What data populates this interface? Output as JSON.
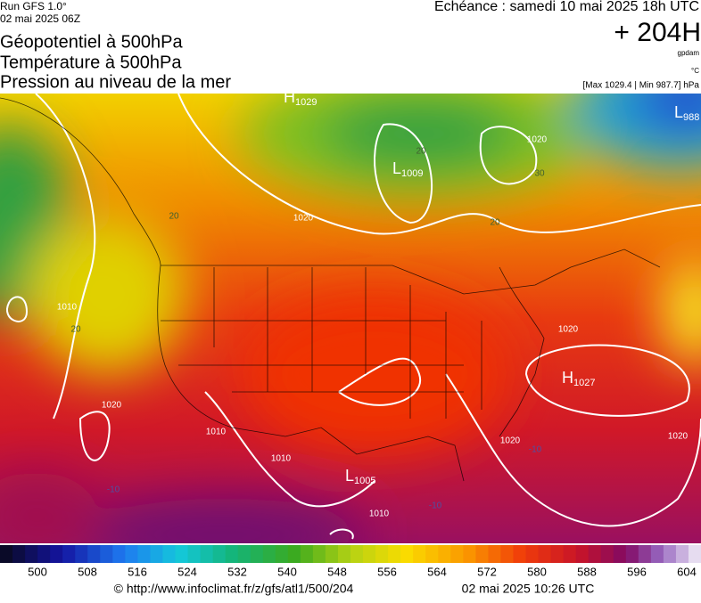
{
  "header": {
    "run": "Run GFS 1.0°",
    "run_date": "02 mai 2025 06Z",
    "titles": [
      "Géopotentiel à 500hPa",
      "Température à 500hPa",
      "Pression au niveau de la mer"
    ],
    "valid": "Echéance : samedi 10 mai 2025 18h UTC",
    "lead": "+ 204H",
    "unit_geo": "gpdam",
    "unit_temp": "°C",
    "range": "[Max 1029.4 | Min 987.7] hPa"
  },
  "map": {
    "centers": [
      {
        "letter": "H",
        "value": "1029"
      },
      {
        "letter": "L",
        "value": "1009"
      },
      {
        "letter": "L",
        "value": "988"
      },
      {
        "letter": "H",
        "value": "1027"
      },
      {
        "letter": "L",
        "value": "1005"
      }
    ],
    "contour_labels": [
      "1020",
      "1010",
      "20",
      "20",
      "1020",
      "1010",
      "1010",
      "1020",
      "30",
      "20",
      "20",
      "1020",
      "1020",
      "-10",
      "1020",
      "-10",
      "-10",
      "1010"
    ]
  },
  "legend": {
    "labels": [
      "500",
      "508",
      "516",
      "524",
      "532",
      "540",
      "548",
      "556",
      "564",
      "572",
      "580",
      "588",
      "596",
      "604"
    ]
  },
  "footer": {
    "url": "© http://www.infoclimat.fr/z/gfs/atl1/500/204",
    "generated": "02 mai 2025 10:26 UTC"
  }
}
